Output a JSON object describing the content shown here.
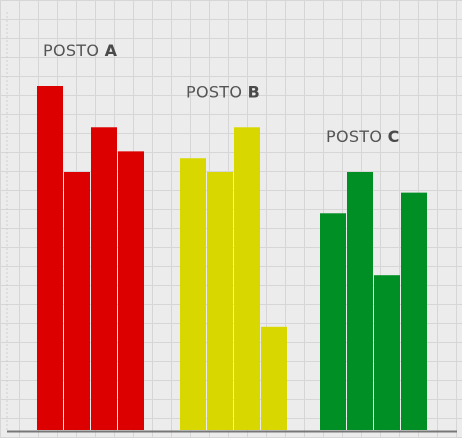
{
  "chart_data": {
    "type": "bar",
    "title": "",
    "xlabel": "",
    "ylabel": "",
    "ylim": [
      0,
      100
    ],
    "grid": true,
    "groups": [
      {
        "prefix": "POSTO",
        "letter": "A",
        "color": "#dc0000",
        "values": [
          100,
          75,
          88,
          81
        ]
      },
      {
        "prefix": "POSTO",
        "letter": "B",
        "color": "#d8d800",
        "values": [
          79,
          75,
          88,
          30
        ]
      },
      {
        "prefix": "POSTO",
        "letter": "C",
        "color": "#008f24",
        "values": [
          63,
          75,
          45,
          69
        ]
      }
    ],
    "colors": {
      "background": "#ececec",
      "grid": "#d6d6d6",
      "axis": "#777777"
    }
  }
}
